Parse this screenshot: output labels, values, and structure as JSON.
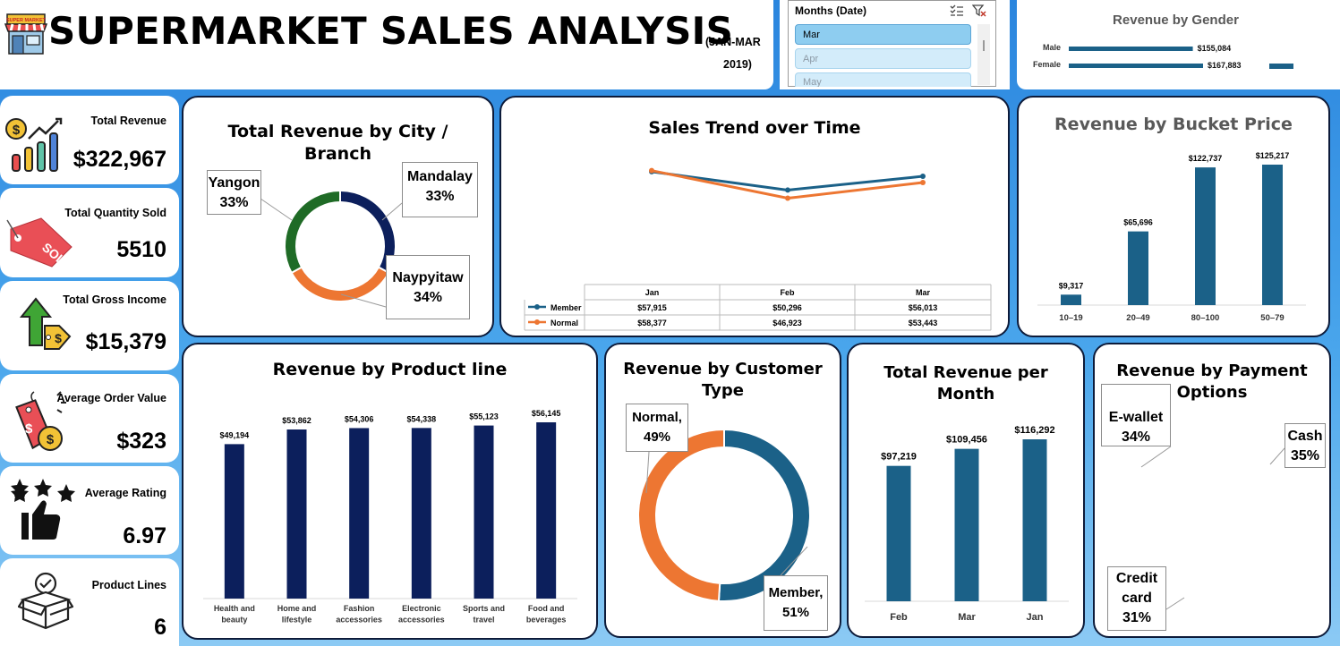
{
  "header": {
    "title": "SUPERMARKET SALES ANALYSIS",
    "date_line1": "(JAN-MAR",
    "date_line2": "2019)",
    "store_sign": "SUPER MARKET"
  },
  "slicer": {
    "title": "Months (Date)",
    "items": [
      "Mar",
      "Apr",
      "May"
    ],
    "selected": "Mar"
  },
  "colors": {
    "navy": "#0c1f5c",
    "teal": "#1b6188",
    "orange": "#ed7632",
    "green": "#1f6b26",
    "background": "#2b8fe0"
  },
  "kpis": [
    {
      "label": "Total Revenue",
      "value": "$322,967",
      "icon": "revenue-chart-icon"
    },
    {
      "label": "Total Quantity Sold",
      "value": "5510",
      "icon": "sold-tag-icon"
    },
    {
      "label": "Total Gross Income",
      "value": "$15,379",
      "icon": "income-arrow-icon"
    },
    {
      "label": "Average Order Value",
      "value": "$323",
      "icon": "price-tag-icon"
    },
    {
      "label": "Average Rating",
      "value": "6.97",
      "icon": "stars-thumb-icon"
    },
    {
      "label": "Product Lines",
      "value": "6",
      "icon": "box-icon"
    }
  ],
  "chart_data": [
    {
      "id": "gender",
      "type": "bar",
      "orientation": "horizontal",
      "title": "Revenue by Gender",
      "categories": [
        "Male",
        "Female"
      ],
      "values": [
        155084,
        167883
      ],
      "value_labels": [
        "$155,084",
        "$167,883"
      ]
    },
    {
      "id": "city",
      "type": "pie",
      "variant": "donut",
      "title": "Total Revenue by City / Branch",
      "categories": [
        "Mandalay",
        "Naypyitaw",
        "Yangon"
      ],
      "values": [
        33,
        34,
        33
      ],
      "value_labels": [
        "33%",
        "34%",
        "33%"
      ],
      "colors": [
        "#0c1f5c",
        "#ed7632",
        "#1f6b26"
      ]
    },
    {
      "id": "trend",
      "type": "line",
      "title": "Sales Trend over Time",
      "categories": [
        "Jan",
        "Feb",
        "Mar"
      ],
      "series": [
        {
          "name": "Member",
          "values": [
            57915,
            50296,
            56013
          ],
          "labels": [
            "$57,915",
            "$50,296",
            "$56,013"
          ],
          "color": "#1b6188"
        },
        {
          "name": "Normal",
          "values": [
            58377,
            46923,
            53443
          ],
          "labels": [
            "$58,377",
            "$46,923",
            "$53,443"
          ],
          "color": "#ed7632"
        }
      ],
      "legend": "data-table"
    },
    {
      "id": "bucket",
      "type": "bar",
      "title": "Revenue by Bucket Price",
      "categories": [
        "10–19",
        "20–49",
        "80–100",
        "50–79"
      ],
      "values": [
        9317,
        65696,
        122737,
        125217
      ],
      "value_labels": [
        "$9,317",
        "$65,696",
        "$122,737",
        "$125,217"
      ],
      "color": "#1b6188"
    },
    {
      "id": "product",
      "type": "bar",
      "title": "Revenue by Product line",
      "categories": [
        [
          "Health and",
          "beauty"
        ],
        [
          "Home and",
          "lifestyle"
        ],
        [
          "Fashion",
          "accessories"
        ],
        [
          "Electronic",
          "accessories"
        ],
        [
          "Sports and",
          "travel"
        ],
        [
          "Food and",
          "beverages"
        ]
      ],
      "values": [
        49194,
        53862,
        54306,
        54338,
        55123,
        56145
      ],
      "value_labels": [
        "$49,194",
        "$53,862",
        "$54,306",
        "$54,338",
        "$55,123",
        "$56,145"
      ],
      "color": "#0c1f5c"
    },
    {
      "id": "customer",
      "type": "pie",
      "variant": "donut",
      "title": "Revenue by Customer Type",
      "categories": [
        "Member,",
        "Normal,"
      ],
      "values": [
        51,
        49
      ],
      "value_labels": [
        "51%",
        "49%"
      ],
      "colors": [
        "#1b6188",
        "#ed7632"
      ]
    },
    {
      "id": "month",
      "type": "bar",
      "title": "Total Revenue per Month",
      "categories": [
        "Feb",
        "Mar",
        "Jan"
      ],
      "values": [
        97219,
        109456,
        116292
      ],
      "value_labels": [
        "$97,219",
        "$109,456",
        "$116,292"
      ],
      "color": "#1b6188"
    },
    {
      "id": "payment",
      "type": "pie",
      "title": "Revenue by Payment Options",
      "categories": [
        "Cash",
        "Credit card",
        "E-wallet"
      ],
      "values": [
        35,
        31,
        34
      ],
      "value_labels": [
        "35%",
        "31%",
        "34%"
      ],
      "colors": [
        "#0c1f5c",
        "#ed7632",
        "#1f6b26"
      ]
    }
  ],
  "labels": {
    "city_title_1": "Total Revenue by City /",
    "city_title_2": "Branch",
    "customer_title_1": "Revenue by Customer",
    "customer_title_2": "Type",
    "month_title_1": "Total Revenue per",
    "month_title_2": "Month",
    "payment_title_1": "Revenue by Payment",
    "payment_title_2": "Options",
    "credit_1": "Credit",
    "credit_2": "card"
  }
}
